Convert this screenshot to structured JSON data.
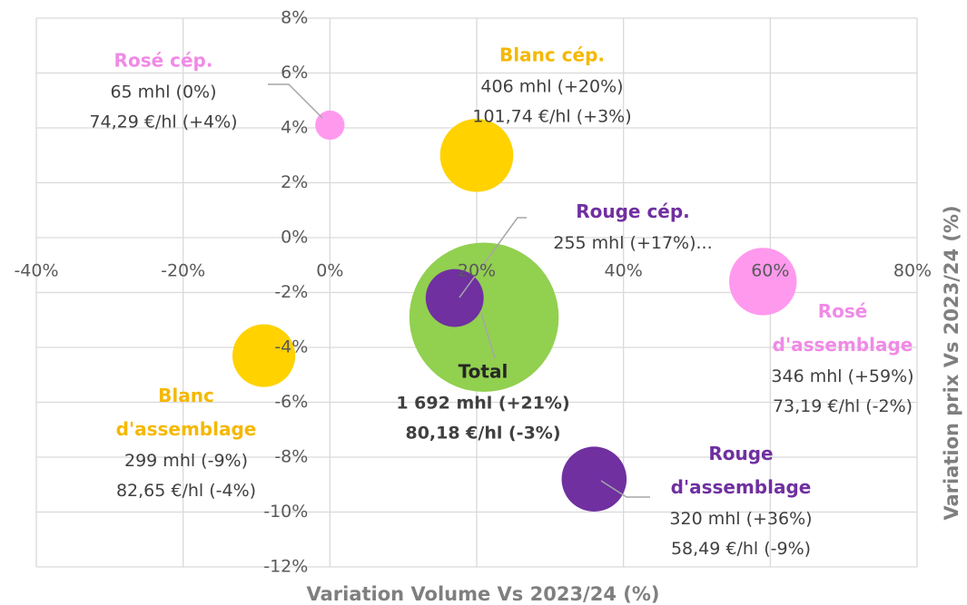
{
  "chart_data": {
    "type": "bubble",
    "x_label": "Variation Volume Vs 2023/24 (%)",
    "y_label": "Variation prix Vs 2023/24 (%)",
    "xlim": [
      -40,
      80
    ],
    "xticks": [
      {
        "value": -40,
        "label": "-40%"
      },
      {
        "value": -20,
        "label": "-20%"
      },
      {
        "value": 0,
        "label": "0%"
      },
      {
        "value": 20,
        "label": "20%"
      },
      {
        "value": 40,
        "label": "40%"
      },
      {
        "value": 60,
        "label": "60%"
      },
      {
        "value": 80,
        "label": "80%"
      }
    ],
    "ylim": [
      -12,
      8
    ],
    "yticks": [
      {
        "value": -12,
        "label": "-12%"
      },
      {
        "value": -10,
        "label": "-10%"
      },
      {
        "value": -8,
        "label": "-8%"
      },
      {
        "value": -6,
        "label": "-6%"
      },
      {
        "value": -4,
        "label": "-4%"
      },
      {
        "value": -2,
        "label": "-2%"
      },
      {
        "value": 0,
        "label": "0%"
      },
      {
        "value": 2,
        "label": "2%"
      },
      {
        "value": 4,
        "label": "4%"
      },
      {
        "value": 6,
        "label": "6%"
      },
      {
        "value": 8,
        "label": "8%"
      }
    ],
    "grid": true,
    "series": [
      {
        "name": "Rosé cép.",
        "color": "#ff99ee",
        "x": [
          0
        ],
        "values": [
          4.1
        ],
        "sizes": [
          65
        ],
        "value_labels": [
          "65 mhl (0%)",
          "74,29 €/hl (+4%)"
        ]
      },
      {
        "name": "Blanc cép.",
        "color": "#ffd200",
        "x": [
          20
        ],
        "values": [
          3.0
        ],
        "sizes": [
          406
        ],
        "value_labels": [
          "406 mhl (+20%)",
          "101,74 €/hl (+3%)"
        ]
      },
      {
        "name": "Total",
        "color": "#92d050",
        "x": [
          21
        ],
        "values": [
          -2.9
        ],
        "sizes": [
          1692
        ],
        "value_labels": [
          "1 692 mhl (+21%)",
          "80,18 €/hl  (-3%)"
        ]
      },
      {
        "name": "Rouge cép.",
        "color": "#7030a0",
        "x": [
          17
        ],
        "values": [
          -2.2
        ],
        "sizes": [
          255
        ],
        "value_labels": [
          "255 mhl (+17%)..."
        ]
      },
      {
        "name": "Rosé d'assemblage",
        "color": "#ff99ee",
        "x": [
          59
        ],
        "values": [
          -1.6
        ],
        "sizes": [
          346
        ],
        "value_labels": [
          "346 mhl (+59%)",
          "73,19 €/hl (-2%)"
        ]
      },
      {
        "name": "Blanc d'assemblage",
        "color": "#ffd200",
        "x": [
          -9
        ],
        "values": [
          -4.3
        ],
        "sizes": [
          299
        ],
        "value_labels": [
          "299 mhl (-9%)",
          "82,65 €/hl (-4%)"
        ]
      },
      {
        "name": "Rouge d'assemblage",
        "color": "#7030a0",
        "x": [
          36
        ],
        "values": [
          -8.8
        ],
        "sizes": [
          320
        ],
        "value_labels": [
          "320 mhl (+36%)",
          "58,49 €/hl (-9%)"
        ]
      }
    ]
  }
}
